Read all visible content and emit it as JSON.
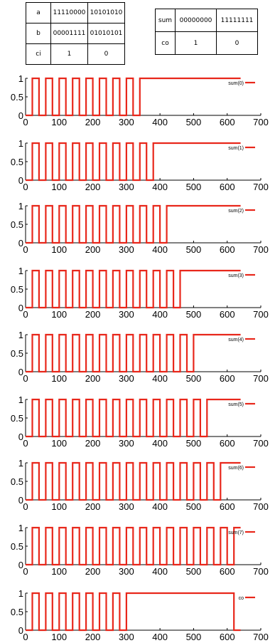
{
  "table_inputs": {
    "rows": [
      {
        "label": "a",
        "v1": "11110000",
        "v2": "10101010"
      },
      {
        "label": "b",
        "v1": "00001111",
        "v2": "01010101"
      },
      {
        "label": "ci",
        "v1": "1",
        "v2": "0"
      }
    ]
  },
  "table_outputs": {
    "rows": [
      {
        "label": "sum",
        "v1": "00000000",
        "v2": "11111111"
      },
      {
        "label": "co",
        "v1": "1",
        "v2": "0"
      }
    ]
  },
  "chart_data": [
    {
      "type": "line",
      "series": [
        {
          "name": "sum(0)",
          "x": [
            0,
            20,
            20,
            40,
            40,
            60,
            60,
            80,
            80,
            100,
            100,
            120,
            120,
            140,
            140,
            160,
            160,
            180,
            180,
            200,
            200,
            220,
            220,
            240,
            240,
            260,
            260,
            280,
            280,
            300,
            300,
            320,
            320,
            340,
            340,
            640
          ],
          "y": [
            0,
            0,
            1,
            1,
            0,
            0,
            1,
            1,
            0,
            0,
            1,
            1,
            0,
            0,
            1,
            1,
            0,
            0,
            1,
            1,
            0,
            0,
            1,
            1,
            0,
            0,
            1,
            1,
            0,
            0,
            1,
            1,
            0,
            0,
            1,
            1
          ]
        }
      ],
      "xlim": [
        0,
        700
      ],
      "ylim": [
        0,
        1
      ],
      "xticks": [
        "0",
        "100",
        "200",
        "300",
        "400",
        "500",
        "600",
        "700"
      ],
      "yticks": [
        "0",
        "0.5",
        "1"
      ],
      "legend": "top-right"
    },
    {
      "type": "line",
      "series": [
        {
          "name": "sum(1)",
          "x": [
            0,
            20,
            20,
            40,
            40,
            60,
            60,
            80,
            80,
            100,
            100,
            120,
            120,
            140,
            140,
            160,
            160,
            180,
            180,
            200,
            200,
            220,
            220,
            240,
            240,
            260,
            260,
            280,
            280,
            300,
            300,
            320,
            320,
            340,
            340,
            360,
            360,
            380,
            380,
            640
          ],
          "y": [
            0,
            0,
            1,
            1,
            0,
            0,
            1,
            1,
            0,
            0,
            1,
            1,
            0,
            0,
            1,
            1,
            0,
            0,
            1,
            1,
            0,
            0,
            1,
            1,
            0,
            0,
            1,
            1,
            0,
            0,
            1,
            1,
            0,
            0,
            1,
            1,
            0,
            0,
            1,
            1
          ]
        }
      ],
      "xlim": [
        0,
        700
      ],
      "ylim": [
        0,
        1
      ],
      "xticks": [
        "0",
        "100",
        "200",
        "300",
        "400",
        "500",
        "600",
        "700"
      ],
      "yticks": [
        "0",
        "0.5",
        "1"
      ],
      "legend": "top-right"
    },
    {
      "type": "line",
      "series": [
        {
          "name": "sum(2)",
          "x": [
            0,
            20,
            20,
            40,
            40,
            60,
            60,
            80,
            80,
            100,
            100,
            120,
            120,
            140,
            140,
            160,
            160,
            180,
            180,
            200,
            200,
            220,
            220,
            240,
            240,
            260,
            260,
            280,
            280,
            300,
            300,
            320,
            320,
            340,
            340,
            360,
            360,
            380,
            380,
            400,
            400,
            420,
            420,
            640
          ],
          "y": [
            0,
            0,
            1,
            1,
            0,
            0,
            1,
            1,
            0,
            0,
            1,
            1,
            0,
            0,
            1,
            1,
            0,
            0,
            1,
            1,
            0,
            0,
            1,
            1,
            0,
            0,
            1,
            1,
            0,
            0,
            1,
            1,
            0,
            0,
            1,
            1,
            0,
            0,
            1,
            1,
            0,
            0,
            1,
            1
          ]
        }
      ],
      "xlim": [
        0,
        700
      ],
      "ylim": [
        0,
        1
      ],
      "xticks": [
        "0",
        "100",
        "200",
        "300",
        "400",
        "500",
        "600",
        "700"
      ],
      "yticks": [
        "0",
        "0.5",
        "1"
      ],
      "legend": "top-right"
    },
    {
      "type": "line",
      "series": [
        {
          "name": "sum(3)",
          "x": [
            0,
            20,
            20,
            40,
            40,
            60,
            60,
            80,
            80,
            100,
            100,
            120,
            120,
            140,
            140,
            160,
            160,
            180,
            180,
            200,
            200,
            220,
            220,
            240,
            240,
            260,
            260,
            280,
            280,
            300,
            300,
            320,
            320,
            340,
            340,
            360,
            360,
            380,
            380,
            400,
            400,
            420,
            420,
            440,
            440,
            460,
            460,
            640
          ],
          "y": [
            0,
            0,
            1,
            1,
            0,
            0,
            1,
            1,
            0,
            0,
            1,
            1,
            0,
            0,
            1,
            1,
            0,
            0,
            1,
            1,
            0,
            0,
            1,
            1,
            0,
            0,
            1,
            1,
            0,
            0,
            1,
            1,
            0,
            0,
            1,
            1,
            0,
            0,
            1,
            1,
            0,
            0,
            1,
            1,
            0,
            0,
            1,
            1
          ]
        }
      ],
      "xlim": [
        0,
        700
      ],
      "ylim": [
        0,
        1
      ],
      "xticks": [
        "0",
        "100",
        "200",
        "300",
        "400",
        "500",
        "600",
        "700"
      ],
      "yticks": [
        "0",
        "0.5",
        "1"
      ],
      "legend": "top-right"
    },
    {
      "type": "line",
      "series": [
        {
          "name": "sum(4)",
          "x": [
            0,
            20,
            20,
            40,
            40,
            60,
            60,
            80,
            80,
            100,
            100,
            120,
            120,
            140,
            140,
            160,
            160,
            180,
            180,
            200,
            200,
            220,
            220,
            240,
            240,
            260,
            260,
            280,
            280,
            300,
            300,
            320,
            320,
            340,
            340,
            360,
            360,
            380,
            380,
            400,
            400,
            420,
            420,
            440,
            440,
            460,
            460,
            480,
            480,
            500,
            500,
            640
          ],
          "y": [
            0,
            0,
            1,
            1,
            0,
            0,
            1,
            1,
            0,
            0,
            1,
            1,
            0,
            0,
            1,
            1,
            0,
            0,
            1,
            1,
            0,
            0,
            1,
            1,
            0,
            0,
            1,
            1,
            0,
            0,
            1,
            1,
            0,
            0,
            1,
            1,
            0,
            0,
            1,
            1,
            0,
            0,
            1,
            1,
            0,
            0,
            1,
            1,
            0,
            0,
            1,
            1
          ]
        }
      ],
      "xlim": [
        0,
        700
      ],
      "ylim": [
        0,
        1
      ],
      "xticks": [
        "0",
        "100",
        "200",
        "300",
        "400",
        "500",
        "600",
        "700"
      ],
      "yticks": [
        "0",
        "0.5",
        "1"
      ],
      "legend": "top-right"
    },
    {
      "type": "line",
      "series": [
        {
          "name": "sum(5)",
          "x": [
            0,
            20,
            20,
            40,
            40,
            60,
            60,
            80,
            80,
            100,
            100,
            120,
            120,
            140,
            140,
            160,
            160,
            180,
            180,
            200,
            200,
            220,
            220,
            240,
            240,
            260,
            260,
            280,
            280,
            300,
            300,
            320,
            320,
            340,
            340,
            360,
            360,
            380,
            380,
            400,
            400,
            420,
            420,
            440,
            440,
            460,
            460,
            480,
            480,
            500,
            500,
            520,
            520,
            540,
            540,
            640
          ],
          "y": [
            0,
            0,
            1,
            1,
            0,
            0,
            1,
            1,
            0,
            0,
            1,
            1,
            0,
            0,
            1,
            1,
            0,
            0,
            1,
            1,
            0,
            0,
            1,
            1,
            0,
            0,
            1,
            1,
            0,
            0,
            1,
            1,
            0,
            0,
            1,
            1,
            0,
            0,
            1,
            1,
            0,
            0,
            1,
            1,
            0,
            0,
            1,
            1,
            0,
            0,
            1,
            1,
            0,
            0,
            1,
            1
          ]
        }
      ],
      "xlim": [
        0,
        700
      ],
      "ylim": [
        0,
        1
      ],
      "xticks": [
        "0",
        "100",
        "200",
        "300",
        "400",
        "500",
        "600",
        "700"
      ],
      "yticks": [
        "0",
        "0.5",
        "1"
      ],
      "legend": "top-right"
    },
    {
      "type": "line",
      "series": [
        {
          "name": "sum(6)",
          "x": [
            0,
            20,
            20,
            40,
            40,
            60,
            60,
            80,
            80,
            100,
            100,
            120,
            120,
            140,
            140,
            160,
            160,
            180,
            180,
            200,
            200,
            220,
            220,
            240,
            240,
            260,
            260,
            280,
            280,
            300,
            300,
            320,
            320,
            340,
            340,
            360,
            360,
            380,
            380,
            400,
            400,
            420,
            420,
            440,
            440,
            460,
            460,
            480,
            480,
            500,
            500,
            520,
            520,
            540,
            540,
            560,
            560,
            580,
            580,
            640
          ],
          "y": [
            0,
            0,
            1,
            1,
            0,
            0,
            1,
            1,
            0,
            0,
            1,
            1,
            0,
            0,
            1,
            1,
            0,
            0,
            1,
            1,
            0,
            0,
            1,
            1,
            0,
            0,
            1,
            1,
            0,
            0,
            1,
            1,
            0,
            0,
            1,
            1,
            0,
            0,
            1,
            1,
            0,
            0,
            1,
            1,
            0,
            0,
            1,
            1,
            0,
            0,
            1,
            1,
            0,
            0,
            1,
            1,
            0,
            0,
            1,
            1
          ]
        }
      ],
      "xlim": [
        0,
        700
      ],
      "ylim": [
        0,
        1
      ],
      "xticks": [
        "0",
        "100",
        "200",
        "300",
        "400",
        "500",
        "600",
        "700"
      ],
      "yticks": [
        "0",
        "0.5",
        "1"
      ],
      "legend": "top-right"
    },
    {
      "type": "line",
      "series": [
        {
          "name": "sum(7)",
          "x": [
            0,
            20,
            20,
            40,
            40,
            60,
            60,
            80,
            80,
            100,
            100,
            120,
            120,
            140,
            140,
            160,
            160,
            180,
            180,
            200,
            200,
            220,
            220,
            240,
            240,
            260,
            260,
            280,
            280,
            300,
            300,
            320,
            320,
            340,
            340,
            360,
            360,
            380,
            380,
            400,
            400,
            420,
            420,
            440,
            440,
            460,
            460,
            480,
            480,
            500,
            500,
            520,
            520,
            540,
            540,
            560,
            560,
            580,
            580,
            600,
            600,
            620,
            620,
            640
          ],
          "y": [
            0,
            0,
            1,
            1,
            0,
            0,
            1,
            1,
            0,
            0,
            1,
            1,
            0,
            0,
            1,
            1,
            0,
            0,
            1,
            1,
            0,
            0,
            1,
            1,
            0,
            0,
            1,
            1,
            0,
            0,
            1,
            1,
            0,
            0,
            1,
            1,
            0,
            0,
            1,
            1,
            0,
            0,
            1,
            1,
            0,
            0,
            1,
            1,
            0,
            0,
            1,
            1,
            0,
            0,
            1,
            1,
            0,
            0,
            1,
            1,
            0,
            0,
            1,
            1
          ]
        }
      ],
      "xlim": [
        0,
        700
      ],
      "ylim": [
        0,
        1
      ],
      "xticks": [
        "0",
        "100",
        "200",
        "300",
        "400",
        "500",
        "600",
        "700"
      ],
      "yticks": [
        "0",
        "0.5",
        "1"
      ],
      "legend": "top-right"
    },
    {
      "type": "line",
      "series": [
        {
          "name": "co",
          "x": [
            0,
            20,
            20,
            40,
            40,
            60,
            60,
            80,
            80,
            100,
            100,
            120,
            120,
            140,
            140,
            160,
            160,
            180,
            180,
            200,
            200,
            220,
            220,
            240,
            240,
            260,
            260,
            280,
            280,
            300,
            300,
            620,
            620,
            640
          ],
          "y": [
            0,
            0,
            1,
            1,
            0,
            0,
            1,
            1,
            0,
            0,
            1,
            1,
            0,
            0,
            1,
            1,
            0,
            0,
            1,
            1,
            0,
            0,
            1,
            1,
            0,
            0,
            1,
            1,
            0,
            0,
            1,
            1,
            0,
            0
          ]
        }
      ],
      "xlim": [
        0,
        700
      ],
      "ylim": [
        0,
        1
      ],
      "xticks": [
        "0",
        "100",
        "200",
        "300",
        "400",
        "500",
        "600",
        "700"
      ],
      "yticks": [
        "0",
        "0.5",
        "1"
      ],
      "legend": "top-right"
    }
  ],
  "colors": {
    "line": "#e8271b",
    "axis": "#000000"
  }
}
